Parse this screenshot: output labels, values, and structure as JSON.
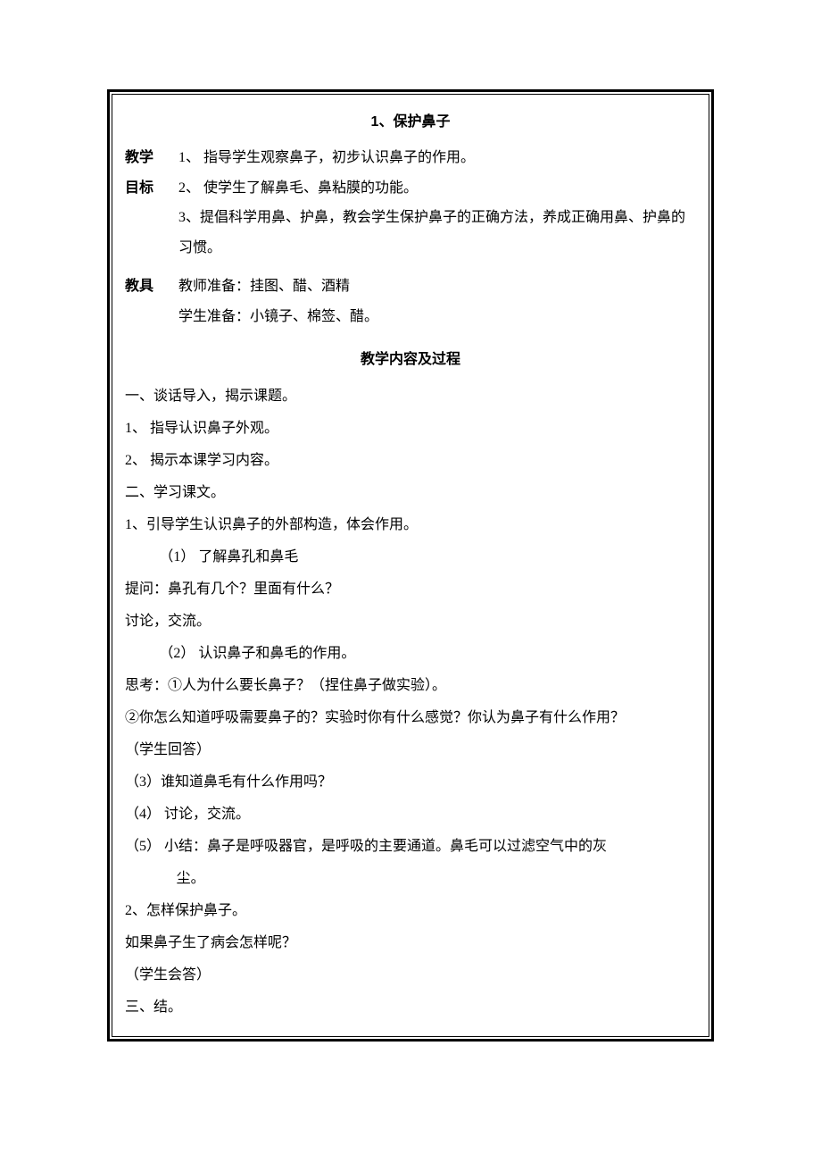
{
  "title": "1、保护鼻子",
  "labels": {
    "goal": "教学目标",
    "goal_a": "教学",
    "goal_b": "目标",
    "tools": "教具",
    "process": "教学内容及过程"
  },
  "goals": [
    "1、  指导学生观察鼻子，初步认识鼻子的作用。",
    "2、  使学生了解鼻毛、鼻粘膜的功能。",
    "3、提倡科学用鼻、护鼻，教会学生保护鼻子的正确方法，养成正确用鼻、护鼻的习惯。"
  ],
  "tools": [
    "教师准备：挂图、醋、酒精",
    "学生准备：小镜子、棉签、醋。"
  ],
  "body": [
    {
      "text": "一、谈话导入，揭示课题。",
      "indent": 0
    },
    {
      "text": "1、  指导认识鼻子外观。",
      "indent": 0
    },
    {
      "text": "2、  揭示本课学习内容。",
      "indent": 0
    },
    {
      "text": "二、学习课文。",
      "indent": 0
    },
    {
      "text": "1、引导学生认识鼻子的外部构造，体会作用。",
      "indent": 0
    },
    {
      "text": "（1）   了解鼻孔和鼻毛",
      "indent": 1
    },
    {
      "text": "提问：鼻孔有几个？里面有什么？",
      "indent": 0
    },
    {
      "text": "讨论，交流。",
      "indent": 0
    },
    {
      "text": "（2）   认识鼻子和鼻毛的作用。",
      "indent": 1
    },
    {
      "text": "思考：①人为什么要长鼻子？（捏住鼻子做实验）。",
      "indent": 0
    },
    {
      "text": "②你怎么知道呼吸需要鼻子的？实验时你有什么感觉？你认为鼻子有什么作用？",
      "indent": 0
    },
    {
      "text": "（学生回答）",
      "indent": 0
    },
    {
      "text": "（3）谁知道鼻毛有什么作用吗？",
      "indent": 0
    },
    {
      "text": "（4）   讨论，交流。",
      "indent": 0
    },
    {
      "text": "（5）   小结：鼻子是呼吸器官，是呼吸的主要通道。鼻毛可以过滤空气中的灰",
      "indent": 0
    },
    {
      "text": "尘。",
      "indent": 2
    },
    {
      "text": "2、怎样保护鼻子。",
      "indent": 0
    },
    {
      "text": "如果鼻子生了病会怎样呢？",
      "indent": 0
    },
    {
      "text": "（学生会答）",
      "indent": 0
    },
    {
      "text": "三、结。",
      "indent": 0
    }
  ]
}
